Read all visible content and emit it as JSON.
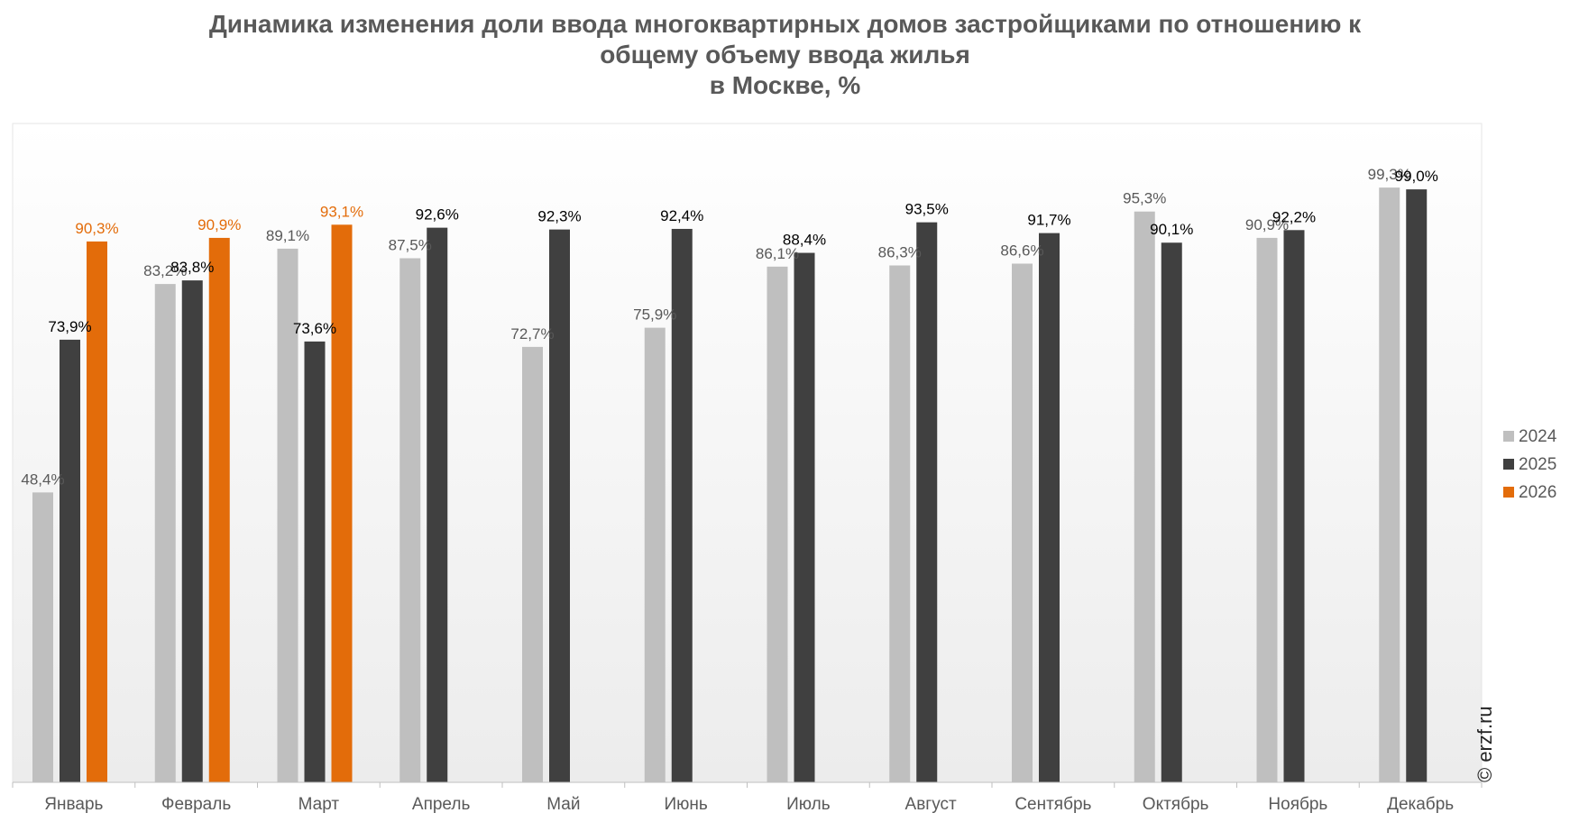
{
  "title_lines": [
    "Динамика изменения доли ввода многоквартирных домов застройщиками по отношению к",
    "общему объему ввода жилья",
    "в Москве, %"
  ],
  "copyright": "© erzf.ru",
  "colors": {
    "2024": "#BFBFBF",
    "2025": "#404040",
    "2026": "#E36C0A",
    "label_2024": "#595959",
    "label_2025": "#000000",
    "label_2026": "#E36C0A",
    "axis_label": "#595959"
  },
  "chart_data": {
    "type": "bar",
    "title": "Динамика изменения доли ввода многоквартирных домов застройщиками по отношению к общему объему ввода жилья в Москве, %",
    "categories": [
      "Январь",
      "Февраль",
      "Март",
      "Апрель",
      "Май",
      "Июнь",
      "Июль",
      "Август",
      "Сентябрь",
      "Октябрь",
      "Ноябрь",
      "Декабрь"
    ],
    "series": [
      {
        "name": "2024",
        "values": [
          48.4,
          83.2,
          89.1,
          87.5,
          72.7,
          75.9,
          86.1,
          86.3,
          86.6,
          95.3,
          90.9,
          99.3
        ],
        "labels": [
          "48,4%",
          "83,2%",
          "89,1%",
          "87,5%",
          "72,7%",
          "75,9%",
          "86,1%",
          "86,3%",
          "86,6%",
          "95,3%",
          "90,9%",
          "99,3%"
        ]
      },
      {
        "name": "2025",
        "values": [
          73.9,
          83.8,
          73.6,
          92.6,
          92.3,
          92.4,
          88.4,
          93.5,
          91.7,
          90.1,
          92.2,
          99.0
        ],
        "labels": [
          "73,9%",
          "83,8%",
          "73,6%",
          "92,6%",
          "92,3%",
          "92,4%",
          "88,4%",
          "93,5%",
          "91,7%",
          "90,1%",
          "92,2%",
          "99,0%"
        ]
      },
      {
        "name": "2026",
        "values": [
          90.3,
          90.9,
          93.1,
          null,
          null,
          null,
          null,
          null,
          null,
          null,
          null,
          null
        ],
        "labels": [
          "90,3%",
          "90,9%",
          "93,1%",
          null,
          null,
          null,
          null,
          null,
          null,
          null,
          null,
          null
        ]
      }
    ],
    "ylim": [
      0,
      110
    ],
    "grid": false,
    "legend_position": "right"
  }
}
